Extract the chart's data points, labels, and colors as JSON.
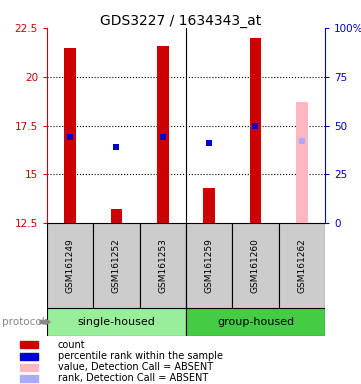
{
  "title": "GDS3227 / 1634343_at",
  "samples": [
    "GSM161249",
    "GSM161252",
    "GSM161253",
    "GSM161259",
    "GSM161260",
    "GSM161262"
  ],
  "bar_bottom": 12.5,
  "red_bars": [
    21.5,
    13.2,
    21.6,
    14.3,
    22.0,
    null
  ],
  "pink_bars": [
    null,
    null,
    null,
    null,
    null,
    18.7
  ],
  "blue_dots": [
    16.9,
    16.4,
    16.9,
    16.6,
    17.5,
    null
  ],
  "light_blue_dots": [
    null,
    null,
    null,
    null,
    null,
    16.7
  ],
  "ylim": [
    12.5,
    22.5
  ],
  "yticks_left": [
    12.5,
    15.0,
    17.5,
    20.0,
    22.5
  ],
  "yticks_left_labels": [
    "12.5",
    "15",
    "17.5",
    "20",
    "22.5"
  ],
  "yticks_right_positions": [
    12.5,
    15.0,
    17.5,
    20.0,
    22.5
  ],
  "yticks_right_labels": [
    "0",
    "25",
    "50",
    "75",
    "100%"
  ],
  "left_axis_color": "#cc0000",
  "right_axis_color": "#0000cc",
  "bar_width": 0.25,
  "red_color": "#cc0000",
  "pink_color": "#FFB6C1",
  "blue_color": "#0000cc",
  "light_blue_color": "#AAAAFF",
  "group_divider": 2.5,
  "group1_label": "single-housed",
  "group2_label": "group-housed",
  "group1_color": "#99EE99",
  "group2_color": "#44CC44",
  "sample_box_color": "#CCCCCC",
  "legend_items": [
    {
      "label": "count",
      "color": "#cc0000"
    },
    {
      "label": "percentile rank within the sample",
      "color": "#0000cc"
    },
    {
      "label": "value, Detection Call = ABSENT",
      "color": "#FFB6C1"
    },
    {
      "label": "rank, Detection Call = ABSENT",
      "color": "#AAAAFF"
    }
  ],
  "title_fontsize": 10,
  "tick_fontsize": 7.5,
  "label_fontsize": 7,
  "group_fontsize": 8
}
